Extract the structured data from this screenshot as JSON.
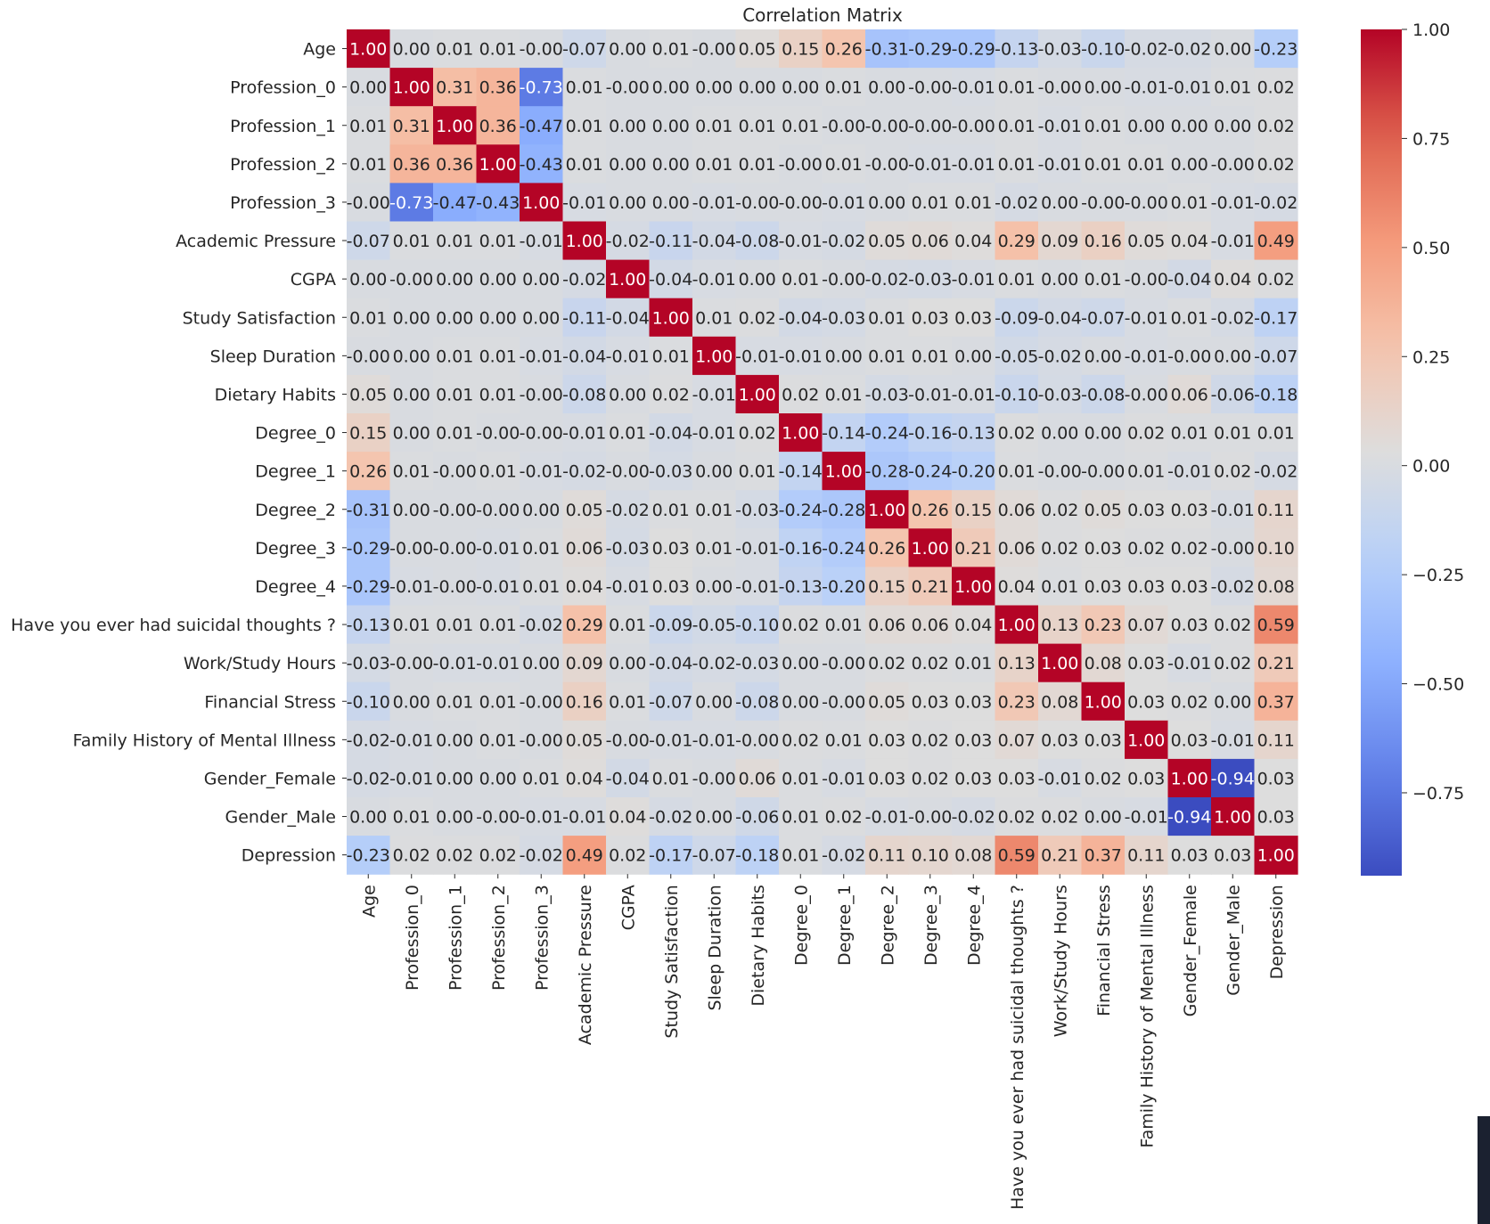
{
  "chart_data": {
    "type": "heatmap",
    "title": "Correlation Matrix",
    "xlabel": "",
    "ylabel": "",
    "colormap": "coolwarm",
    "vmin": -0.94,
    "vmax": 1.0,
    "value_format": "2 decimals",
    "labels": [
      "Age",
      "Profession_0",
      "Profession_1",
      "Profession_2",
      "Profession_3",
      "Academic Pressure",
      "CGPA",
      "Study Satisfaction",
      "Sleep Duration",
      "Dietary Habits",
      "Degree_0",
      "Degree_1",
      "Degree_2",
      "Degree_3",
      "Degree_4",
      "Have you ever had suicidal thoughts ?",
      "Work/Study Hours",
      "Financial Stress",
      "Family History of Mental Illness",
      "Gender_Female",
      "Gender_Male",
      "Depression"
    ],
    "colorbar_ticks": [
      {
        "value": 1.0,
        "label": "1.00"
      },
      {
        "value": 0.75,
        "label": "0.75"
      },
      {
        "value": 0.5,
        "label": "0.50"
      },
      {
        "value": 0.25,
        "label": "0.25"
      },
      {
        "value": 0.0,
        "label": "0.00"
      },
      {
        "value": -0.25,
        "label": "−0.25"
      },
      {
        "value": -0.5,
        "label": "−0.50"
      },
      {
        "value": -0.75,
        "label": "−0.75"
      }
    ],
    "matrix": [
      [
        1.0,
        0.0,
        0.01,
        0.01,
        -0.0,
        -0.07,
        0.0,
        0.01,
        -0.0,
        0.05,
        0.15,
        0.26,
        -0.31,
        -0.29,
        -0.29,
        -0.13,
        -0.03,
        -0.1,
        -0.02,
        -0.02,
        0.0,
        -0.23
      ],
      [
        0.0,
        1.0,
        0.31,
        0.36,
        -0.73,
        0.01,
        -0.0,
        0.0,
        0.0,
        0.0,
        0.0,
        0.01,
        0.0,
        -0.0,
        -0.01,
        0.01,
        -0.0,
        0.0,
        -0.01,
        -0.01,
        0.01,
        0.02
      ],
      [
        0.01,
        0.31,
        1.0,
        0.36,
        -0.47,
        0.01,
        0.0,
        0.0,
        0.01,
        0.01,
        0.01,
        -0.0,
        -0.0,
        -0.0,
        -0.0,
        0.01,
        -0.01,
        0.01,
        0.0,
        0.0,
        0.0,
        0.02
      ],
      [
        0.01,
        0.36,
        0.36,
        1.0,
        -0.43,
        0.01,
        0.0,
        0.0,
        0.01,
        0.01,
        -0.0,
        0.01,
        -0.0,
        -0.01,
        -0.01,
        0.01,
        -0.01,
        0.01,
        0.01,
        0.0,
        -0.0,
        0.02
      ],
      [
        -0.0,
        -0.73,
        -0.47,
        -0.43,
        1.0,
        -0.01,
        0.0,
        0.0,
        -0.01,
        -0.0,
        -0.0,
        -0.01,
        0.0,
        0.01,
        0.01,
        -0.02,
        0.0,
        -0.0,
        -0.0,
        0.01,
        -0.01,
        -0.02
      ],
      [
        -0.07,
        0.01,
        0.01,
        0.01,
        -0.01,
        1.0,
        -0.02,
        -0.11,
        -0.04,
        -0.08,
        -0.01,
        -0.02,
        0.05,
        0.06,
        0.04,
        0.29,
        0.09,
        0.16,
        0.05,
        0.04,
        -0.01,
        0.49
      ],
      [
        0.0,
        -0.0,
        0.0,
        0.0,
        0.0,
        -0.02,
        1.0,
        -0.04,
        -0.01,
        0.0,
        0.01,
        -0.0,
        -0.02,
        -0.03,
        -0.01,
        0.01,
        0.0,
        0.01,
        -0.0,
        -0.04,
        0.04,
        0.02
      ],
      [
        0.01,
        0.0,
        0.0,
        0.0,
        0.0,
        -0.11,
        -0.04,
        1.0,
        0.01,
        0.02,
        -0.04,
        -0.03,
        0.01,
        0.03,
        0.03,
        -0.09,
        -0.04,
        -0.07,
        -0.01,
        0.01,
        -0.02,
        -0.17
      ],
      [
        -0.0,
        0.0,
        0.01,
        0.01,
        -0.01,
        -0.04,
        -0.01,
        0.01,
        1.0,
        -0.01,
        -0.01,
        0.0,
        0.01,
        0.01,
        0.0,
        -0.05,
        -0.02,
        0.0,
        -0.01,
        -0.0,
        0.0,
        -0.07
      ],
      [
        0.05,
        0.0,
        0.01,
        0.01,
        -0.0,
        -0.08,
        0.0,
        0.02,
        -0.01,
        1.0,
        0.02,
        0.01,
        -0.03,
        -0.01,
        -0.01,
        -0.1,
        -0.03,
        -0.08,
        -0.0,
        0.06,
        -0.06,
        -0.18
      ],
      [
        0.15,
        0.0,
        0.01,
        -0.0,
        -0.0,
        -0.01,
        0.01,
        -0.04,
        -0.01,
        0.02,
        1.0,
        -0.14,
        -0.24,
        -0.16,
        -0.13,
        0.02,
        0.0,
        0.0,
        0.02,
        0.01,
        0.01,
        0.01
      ],
      [
        0.26,
        0.01,
        -0.0,
        0.01,
        -0.01,
        -0.02,
        -0.0,
        -0.03,
        0.0,
        0.01,
        -0.14,
        1.0,
        -0.28,
        -0.24,
        -0.2,
        0.01,
        -0.0,
        -0.0,
        0.01,
        -0.01,
        0.02,
        -0.02
      ],
      [
        -0.31,
        0.0,
        -0.0,
        -0.0,
        0.0,
        0.05,
        -0.02,
        0.01,
        0.01,
        -0.03,
        -0.24,
        -0.28,
        1.0,
        0.26,
        0.15,
        0.06,
        0.02,
        0.05,
        0.03,
        0.03,
        -0.01,
        0.11
      ],
      [
        -0.29,
        -0.0,
        -0.0,
        -0.01,
        0.01,
        0.06,
        -0.03,
        0.03,
        0.01,
        -0.01,
        -0.16,
        -0.24,
        0.26,
        1.0,
        0.21,
        0.06,
        0.02,
        0.03,
        0.02,
        0.02,
        -0.0,
        0.1
      ],
      [
        -0.29,
        -0.01,
        -0.0,
        -0.01,
        0.01,
        0.04,
        -0.01,
        0.03,
        0.0,
        -0.01,
        -0.13,
        -0.2,
        0.15,
        0.21,
        1.0,
        0.04,
        0.01,
        0.03,
        0.03,
        0.03,
        -0.02,
        0.08
      ],
      [
        -0.13,
        0.01,
        0.01,
        0.01,
        -0.02,
        0.29,
        0.01,
        -0.09,
        -0.05,
        -0.1,
        0.02,
        0.01,
        0.06,
        0.06,
        0.04,
        1.0,
        0.13,
        0.23,
        0.07,
        0.03,
        0.02,
        0.59
      ],
      [
        -0.03,
        -0.0,
        -0.01,
        -0.01,
        0.0,
        0.09,
        0.0,
        -0.04,
        -0.02,
        -0.03,
        0.0,
        -0.0,
        0.02,
        0.02,
        0.01,
        0.13,
        1.0,
        0.08,
        0.03,
        -0.01,
        0.02,
        0.21
      ],
      [
        -0.1,
        0.0,
        0.01,
        0.01,
        -0.0,
        0.16,
        0.01,
        -0.07,
        0.0,
        -0.08,
        0.0,
        -0.0,
        0.05,
        0.03,
        0.03,
        0.23,
        0.08,
        1.0,
        0.03,
        0.02,
        0.0,
        0.37
      ],
      [
        -0.02,
        -0.01,
        0.0,
        0.01,
        -0.0,
        0.05,
        -0.0,
        -0.01,
        -0.01,
        -0.0,
        0.02,
        0.01,
        0.03,
        0.02,
        0.03,
        0.07,
        0.03,
        0.03,
        1.0,
        0.03,
        -0.01,
        0.11
      ],
      [
        -0.02,
        -0.01,
        0.0,
        0.0,
        0.01,
        0.04,
        -0.04,
        0.01,
        -0.0,
        0.06,
        0.01,
        -0.01,
        0.03,
        0.02,
        0.03,
        0.03,
        -0.01,
        0.02,
        0.03,
        1.0,
        -0.94,
        0.03
      ],
      [
        0.0,
        0.01,
        0.0,
        -0.0,
        -0.01,
        -0.01,
        0.04,
        -0.02,
        0.0,
        -0.06,
        0.01,
        0.02,
        -0.01,
        -0.0,
        -0.02,
        0.02,
        0.02,
        0.0,
        -0.01,
        -0.94,
        1.0,
        0.03
      ],
      [
        -0.23,
        0.02,
        0.02,
        0.02,
        -0.02,
        0.49,
        0.02,
        -0.17,
        -0.07,
        -0.18,
        0.01,
        -0.02,
        0.11,
        0.1,
        0.08,
        0.59,
        0.21,
        0.37,
        0.11,
        0.03,
        0.03,
        1.0
      ]
    ]
  }
}
